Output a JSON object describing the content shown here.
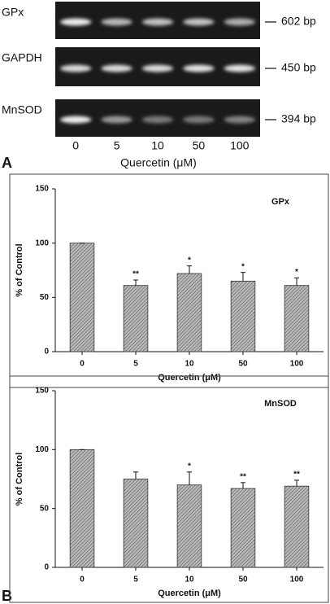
{
  "gel": {
    "panel": "A",
    "xlabel": "Quercetin (μM)",
    "lanes": [
      "0",
      "5",
      "10",
      "50",
      "100"
    ],
    "rows": [
      {
        "label": "GPx",
        "size": "602 bp"
      },
      {
        "label": "GAPDH",
        "size": "450 bp"
      },
      {
        "label": "MnSOD",
        "size": "394 bp"
      }
    ]
  },
  "panel_b": "B",
  "chart_data": [
    {
      "type": "bar",
      "title": "GPx",
      "xlabel": "Quercetin (μM)",
      "ylabel": "% of Control",
      "categories": [
        "0",
        "5",
        "10",
        "50",
        "100"
      ],
      "values": [
        100,
        61,
        72,
        65,
        61
      ],
      "errors": [
        0,
        5,
        7,
        8,
        7
      ],
      "annotations": [
        null,
        "**",
        "*",
        "*",
        "*"
      ],
      "ylim": [
        0,
        150
      ],
      "yticks": [
        0,
        50,
        100,
        150
      ],
      "color": "#999999"
    },
    {
      "type": "bar",
      "title": "MnSOD",
      "xlabel": "Quercetin (μM)",
      "ylabel": "% of Control",
      "categories": [
        "0",
        "5",
        "10",
        "50",
        "100"
      ],
      "values": [
        100,
        75,
        70,
        67,
        69
      ],
      "errors": [
        0,
        6,
        11,
        5,
        5
      ],
      "annotations": [
        null,
        null,
        "*",
        "**",
        "**"
      ],
      "ylim": [
        0,
        150
      ],
      "yticks": [
        0,
        50,
        100,
        150
      ],
      "color": "#999999"
    }
  ]
}
